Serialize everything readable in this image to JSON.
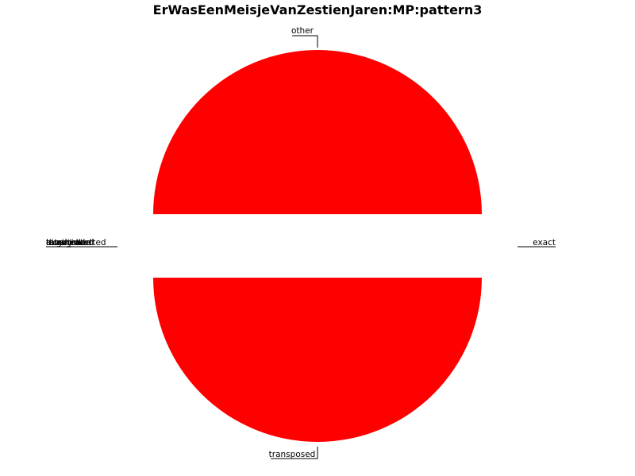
{
  "chart_data": {
    "type": "pie",
    "title": "ErWasEenMeisjeVanZestienJaren:MP:pattern3",
    "slices": [
      {
        "label": "other",
        "value": 50,
        "color": "#ff0000"
      },
      {
        "label": "exact",
        "value": 0,
        "color": "#ff0000"
      },
      {
        "label": "transposed",
        "value": 50,
        "color": "#ff0000"
      },
      {
        "label": "tonal",
        "value": 0,
        "color": "#ff0000"
      },
      {
        "label": "tonal_inverted",
        "value": 0,
        "color": "#ff0000"
      },
      {
        "label": "inverted",
        "value": 0,
        "color": "#ff0000"
      },
      {
        "label": "retrograde",
        "value": 0,
        "color": "#ff0000"
      },
      {
        "label": "augmented",
        "value": 0,
        "color": "#ff0000"
      },
      {
        "label": "diminished",
        "value": 0,
        "color": "#ff0000"
      }
    ],
    "label_groups": {
      "top": [
        "other"
      ],
      "right": [
        "exact"
      ],
      "bottom": [
        "transposed"
      ],
      "left": [
        "tonal",
        "tonal_inverted",
        "inverted",
        "retrograde",
        "augmented",
        "diminished"
      ]
    },
    "explode_gap": true,
    "legend": "none"
  }
}
